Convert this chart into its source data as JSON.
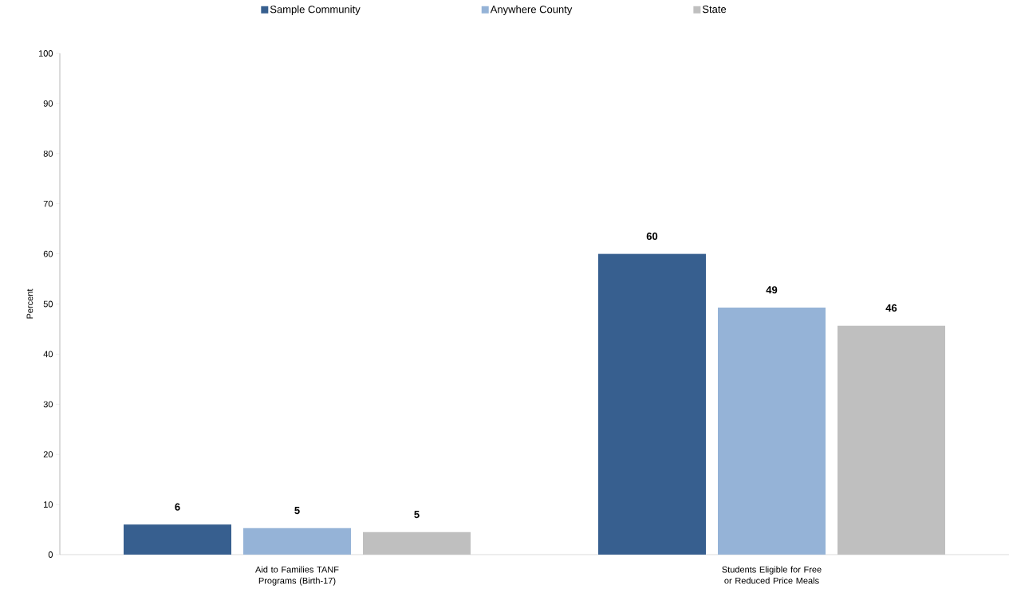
{
  "chart_data": {
    "type": "bar",
    "ylabel": "Percent",
    "categories": [
      "Aid to Families TANF Programs (Birth-17)",
      "Students Eligible for Free or Reduced Price Meals"
    ],
    "series": [
      {
        "name": "Sample Community",
        "color": "#375f8f",
        "values": [
          6.0,
          60.0
        ],
        "value_labels": [
          "6",
          "60"
        ]
      },
      {
        "name": "Anywhere  County",
        "color": "#95b3d7",
        "values": [
          5.3,
          49.3
        ],
        "value_labels": [
          "5",
          "49"
        ]
      },
      {
        "name": "State",
        "color": "#bfbfbf",
        "values": [
          4.5,
          45.7
        ],
        "value_labels": [
          "5",
          "46"
        ]
      }
    ],
    "ylim": [
      0,
      100
    ],
    "yticks": [
      0,
      10,
      20,
      30,
      40,
      50,
      60,
      70,
      80,
      90,
      100
    ],
    "grid": false,
    "legend": "top"
  }
}
